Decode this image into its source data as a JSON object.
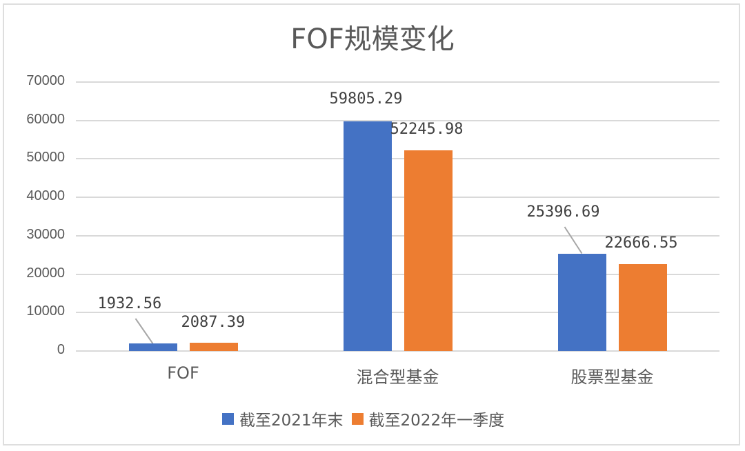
{
  "chart_data": {
    "type": "bar",
    "title": "FOF规模变化",
    "xlabel": "",
    "ylabel": "",
    "ylim": [
      0,
      70000
    ],
    "yticks": [
      "0",
      "10000",
      "20000",
      "30000",
      "40000",
      "50000",
      "60000",
      "70000"
    ],
    "grid": true,
    "legend_position": "bottom",
    "categories": [
      "FOF",
      "混合型基金",
      "股票型基金"
    ],
    "series": [
      {
        "name": "截至2021年末",
        "color": "#4472C4",
        "values": [
          1932.56,
          59805.29,
          25396.69
        ],
        "labels": [
          "1932.56",
          "59805.29",
          "25396.69"
        ]
      },
      {
        "name": "截至2022年一季度",
        "color": "#ED7D31",
        "values": [
          2087.39,
          52245.98,
          22666.55
        ],
        "labels": [
          "2087.39",
          "52245.98",
          "22666.55"
        ]
      }
    ]
  }
}
